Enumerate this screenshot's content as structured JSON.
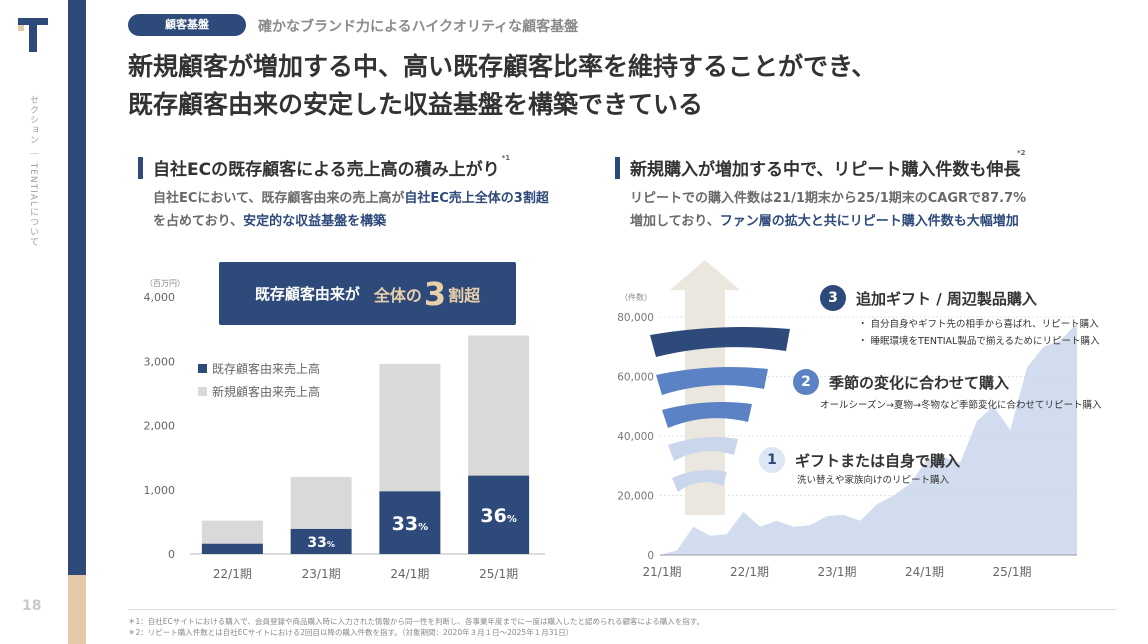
{
  "page": {
    "number": "18",
    "sidebar_text": "セクション ｜ TENTIALについて",
    "tag": "顧客基盤",
    "tag_caption": "確かなブランド力によるハイクオリティな顧客基盤",
    "title_line1": "新規顧客が増加する中、高い既存顧客比率を維持することができ、",
    "title_line2": "既存顧客由来の安定した収益基盤を構築できている"
  },
  "left": {
    "heading": "自社ECの既存顧客による売上高の積み上がり",
    "heading_note": "*1",
    "desc_line1_a": "自社ECにおいて、既存顧客由来の売上高が",
    "desc_line1_b": "自社EC売上全体の3割超",
    "desc_line2_a": "を占めており、",
    "desc_line2_b": "安定的な収益基盤を構築",
    "unit": "（百万円）",
    "callout_prefix": "既存顧客由来が",
    "callout_mid": "全体の",
    "callout_big": "3",
    "callout_suffix": "割超",
    "legend_existing": "既存顧客由来売上高",
    "legend_new": "新規顧客由来売上高",
    "pct_labels": [
      "",
      "33",
      "33",
      "36"
    ],
    "pct_unit": "%"
  },
  "right": {
    "heading": "新規購入が増加する中で、リピート購入件数も伸長",
    "heading_note": "*2",
    "desc_line1": "リピートでの購入件数は21/1期末から25/1期末のCAGRで87.7%",
    "desc_line2_a": "増加しており、",
    "desc_line2_b": "ファン層の拡大と共にリピート購入件数も大幅増加",
    "unit": "（件数）",
    "items": [
      {
        "num": "3",
        "title": "追加ギフト / 周辺製品購入",
        "color": "#2e4a7a"
      },
      {
        "num": "2",
        "title": "季節の変化に合わせて購入",
        "color": "#5b82c4"
      },
      {
        "num": "1",
        "title": "ギフトまたは自身で購入",
        "color": "#c9d6ec"
      }
    ],
    "bullets": [
      "自分自身やギフト先の相手から喜ばれ、リピート購入",
      "睡眠環境をTENTIAL製品で揃えるためにリピート購入"
    ],
    "item2_sub": "オールシーズン→夏物→冬物など季節変化に合わせてリピート購入",
    "item1_sub": "洗い替えや家族向けのリピート購入"
  },
  "footnotes": [
    "＊1：自社ECサイトにおける購入で、会員登録や商品購入時に入力された情報から同一性を判断し、各事業年度までに一度は購入したと認められる顧客による購入を指す。",
    "＊2：リピート購入件数とは自社ECサイトにおける2回目以降の購入件数を指す。（対象期間：2020年３月１日～2025年１月31日）"
  ],
  "colors": {
    "navy": "#2e4a7a",
    "grey": "#d9d9d9",
    "area": "#c9d6ec",
    "tan": "#e3c9a8"
  },
  "chart_data": [
    {
      "type": "bar",
      "stacked": true,
      "categories": [
        "22/1期",
        "23/1期",
        "24/1期",
        "25/1期"
      ],
      "series": [
        {
          "name": "既存顧客由来売上高",
          "values": [
            160,
            390,
            975,
            1220
          ]
        },
        {
          "name": "新規顧客由来売上高",
          "values": [
            360,
            810,
            1985,
            2180
          ]
        }
      ],
      "ylim": [
        0,
        4000
      ],
      "yticks": [
        0,
        1000,
        2000,
        3000,
        4000
      ],
      "ytick_labels": [
        "0",
        "1,000",
        "2,000",
        "3,000",
        "4,000"
      ],
      "ylabel": "（百万円）",
      "grid": false,
      "legend": "upper-left"
    },
    {
      "type": "area",
      "x": [
        0,
        1,
        2,
        3,
        4,
        5,
        6,
        7,
        8,
        9,
        10,
        11,
        12,
        13,
        14,
        15,
        16,
        17,
        18,
        19,
        20,
        21,
        22,
        23,
        24,
        25
      ],
      "values": [
        0,
        1500,
        9500,
        6500,
        7000,
        14500,
        9500,
        11500,
        9500,
        10000,
        13000,
        13500,
        11500,
        17000,
        20000,
        24000,
        32000,
        33000,
        31000,
        45000,
        50000,
        42000,
        63000,
        70000,
        72000,
        78000
      ],
      "xticks": [
        "21/1期",
        "22/1期",
        "23/1期",
        "24/1期",
        "25/1期"
      ],
      "ylim": [
        0,
        80000
      ],
      "yticks": [
        0,
        20000,
        40000,
        60000,
        80000
      ],
      "ytick_labels": [
        "0",
        "20,000",
        "40,000",
        "60,000",
        "80,000"
      ],
      "ylabel": "（件数）",
      "grid": true
    }
  ]
}
